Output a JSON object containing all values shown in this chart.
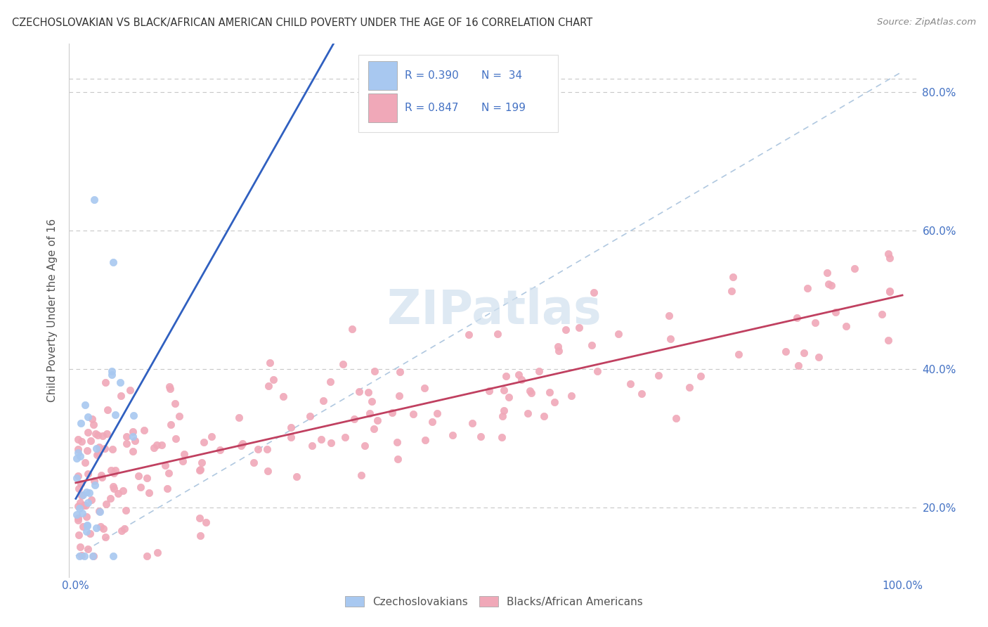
{
  "title": "CZECHOSLOVAKIAN VS BLACK/AFRICAN AMERICAN CHILD POVERTY UNDER THE AGE OF 16 CORRELATION CHART",
  "source": "Source: ZipAtlas.com",
  "ylabel": "Child Poverty Under the Age of 16",
  "blue_color": "#A8C8F0",
  "blue_edge_color": "#A8C8F0",
  "pink_color": "#F0A8B8",
  "pink_edge_color": "#F0A8B8",
  "blue_line_color": "#3060C0",
  "pink_line_color": "#C04060",
  "diagonal_color": "#B0C8E0",
  "text_color": "#4472C4",
  "background_color": "#FFFFFF",
  "grid_color": "#C8C8C8",
  "watermark_color": "#D0E0EE",
  "title_color": "#333333",
  "ylabel_color": "#555555",
  "source_color": "#888888",
  "legend_label_color": "#555555"
}
